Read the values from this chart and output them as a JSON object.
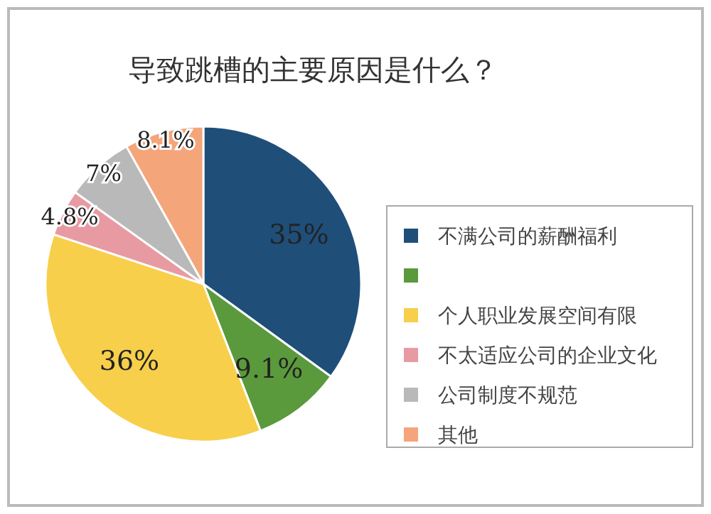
{
  "chart_data": {
    "type": "pie",
    "title": "导致跳槽的主要原因是什么？",
    "categories": [
      "不满公司的薪酬福利",
      null,
      "个人职业发展空间有限",
      "不太适应公司的企业文化",
      "公司制度不规范",
      "其他"
    ],
    "values": [
      35,
      9.1,
      36,
      4.8,
      7,
      8.1
    ],
    "value_labels": [
      "35%",
      "9.1%",
      "36%",
      "4.8%",
      "7%",
      "8.1%"
    ],
    "colors": [
      "#1f4e79",
      "#5a9a3c",
      "#f7cf4a",
      "#e89aa3",
      "#b9b9b9",
      "#f4a57a"
    ],
    "legend": "right"
  }
}
